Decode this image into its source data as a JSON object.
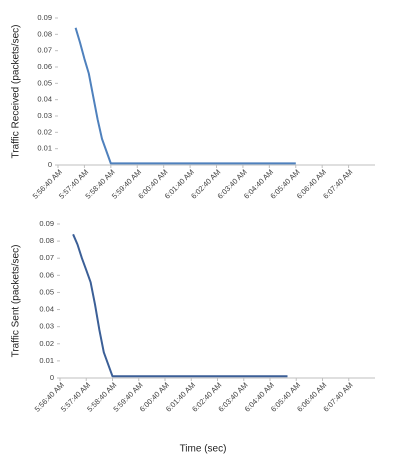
{
  "chart_data": [
    {
      "type": "line",
      "ylabel": "Traffic Received (packets/sec)",
      "color": "#4f81bd",
      "x": [
        "5:57:20 AM",
        "5:57:30 AM",
        "5:57:40 AM",
        "5:57:50 AM",
        "5:58:00 AM",
        "5:58:10 AM",
        "5:58:20 AM",
        "5:58:40 AM",
        "6:05:40 AM"
      ],
      "values": [
        0.084,
        0.075,
        0.065,
        0.056,
        0.042,
        0.028,
        0.016,
        0.001,
        0.001
      ],
      "xlim": [
        "5:56:40 AM",
        "6:08:40 AM"
      ],
      "xticks": [
        "5:56:40 AM",
        "5:57:40 AM",
        "5:58:40 AM",
        "5:59:40 AM",
        "6:00:40 AM",
        "6:01:40 AM",
        "6:02:40 AM",
        "6:03:40 AM",
        "6:04:40 AM",
        "6:05:40 AM",
        "6:06:40 AM",
        "6:07:40 AM"
      ],
      "ylim": [
        0,
        0.09
      ],
      "yticks": [
        0,
        0.01,
        0.02,
        0.03,
        0.04,
        0.05,
        0.06,
        0.07,
        0.08,
        0.09
      ]
    },
    {
      "type": "line",
      "ylabel": "Traffic Sent (packets/sec)",
      "xlabel": "Time (sec)",
      "color": "#3b5f97",
      "x": [
        "5:57:10 AM",
        "5:57:20 AM",
        "5:57:30 AM",
        "5:57:40 AM",
        "5:57:50 AM",
        "5:58:00 AM",
        "5:58:10 AM",
        "5:58:20 AM",
        "5:58:40 AM",
        "6:05:20 AM"
      ],
      "values": [
        0.084,
        0.078,
        0.07,
        0.063,
        0.056,
        0.043,
        0.028,
        0.015,
        0.001,
        0.001
      ],
      "xlim": [
        "5:56:40 AM",
        "6:08:40 AM"
      ],
      "xticks": [
        "5:56:40 AM",
        "5:57:40 AM",
        "5:58:40 AM",
        "5:59:40 AM",
        "6:00:40 AM",
        "6:01:40 AM",
        "6:02:40 AM",
        "6:03:40 AM",
        "6:04:40 AM",
        "6:05:40 AM",
        "6:06:40 AM",
        "6:07:40 AM"
      ],
      "ylim": [
        0,
        0.09
      ],
      "yticks": [
        0,
        0.01,
        0.02,
        0.03,
        0.04,
        0.05,
        0.06,
        0.07,
        0.08,
        0.09
      ]
    }
  ]
}
